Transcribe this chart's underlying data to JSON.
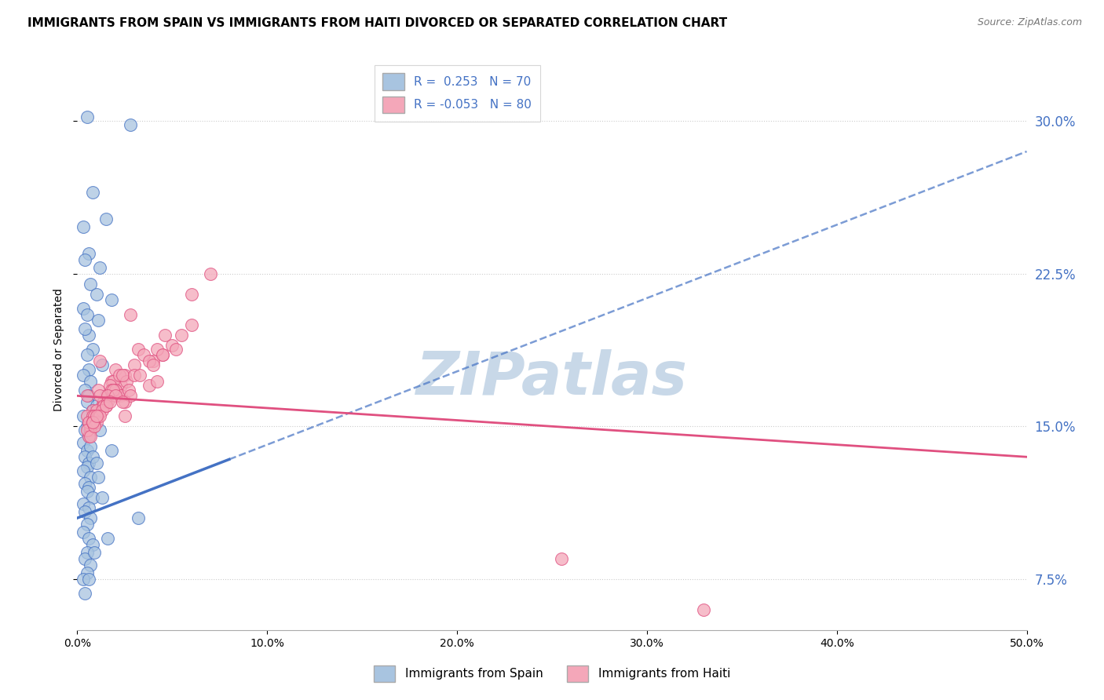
{
  "title": "IMMIGRANTS FROM SPAIN VS IMMIGRANTS FROM HAITI DIVORCED OR SEPARATED CORRELATION CHART",
  "source": "Source: ZipAtlas.com",
  "ylabel": "Divorced or Separated",
  "xlim": [
    0.0,
    50.0
  ],
  "ylim": [
    5.0,
    32.5
  ],
  "y_ticks": [
    7.5,
    15.0,
    22.5,
    30.0
  ],
  "y_tick_labels": [
    "7.5%",
    "15.0%",
    "22.5%",
    "30.0%"
  ],
  "x_ticks": [
    0,
    10,
    20,
    30,
    40,
    50
  ],
  "x_tick_labels": [
    "0.0%",
    "10.0%",
    "20.0%",
    "30.0%",
    "40.0%",
    "50.0%"
  ],
  "legend1_label": "R =  0.253   N = 70",
  "legend2_label": "R = -0.053   N = 80",
  "spain_color": "#a8c4e0",
  "haiti_color": "#f4a7b9",
  "spain_line_color": "#4472c4",
  "haiti_line_color": "#e05080",
  "watermark": "ZIPatlas",
  "watermark_color": "#c8d8e8",
  "title_fontsize": 11,
  "axis_label_fontsize": 10,
  "tick_fontsize": 10,
  "legend_fontsize": 11,
  "spain_R": 0.253,
  "haiti_R": -0.053,
  "spain_scatter_x": [
    0.5,
    2.8,
    0.8,
    1.5,
    0.3,
    0.6,
    1.2,
    0.4,
    0.7,
    1.0,
    0.3,
    0.5,
    1.8,
    0.6,
    0.4,
    1.1,
    0.8,
    0.5,
    0.6,
    0.3,
    0.7,
    1.3,
    0.4,
    0.6,
    0.5,
    0.8,
    1.0,
    0.3,
    0.7,
    0.5,
    1.5,
    0.4,
    0.6,
    0.9,
    0.3,
    0.5,
    0.7,
    0.4,
    1.2,
    0.6,
    0.8,
    0.5,
    0.3,
    0.7,
    1.0,
    0.4,
    0.6,
    1.8,
    0.5,
    0.8,
    0.3,
    1.1,
    0.6,
    0.4,
    0.7,
    0.5,
    1.3,
    0.3,
    0.6,
    0.8,
    0.5,
    3.2,
    0.4,
    1.6,
    0.7,
    0.5,
    0.3,
    0.9,
    0.6,
    0.4
  ],
  "spain_scatter_y": [
    30.2,
    29.8,
    26.5,
    25.2,
    24.8,
    23.5,
    22.8,
    23.2,
    22.0,
    21.5,
    20.8,
    20.5,
    21.2,
    19.5,
    19.8,
    20.2,
    18.8,
    18.5,
    17.8,
    17.5,
    17.2,
    18.0,
    16.8,
    16.5,
    16.2,
    15.8,
    16.0,
    15.5,
    15.2,
    15.0,
    16.5,
    14.8,
    14.5,
    15.2,
    14.2,
    13.8,
    14.0,
    13.5,
    14.8,
    13.2,
    13.5,
    13.0,
    12.8,
    12.5,
    13.2,
    12.2,
    12.0,
    13.8,
    11.8,
    11.5,
    11.2,
    12.5,
    11.0,
    10.8,
    10.5,
    10.2,
    11.5,
    9.8,
    9.5,
    9.2,
    8.8,
    10.5,
    8.5,
    9.5,
    8.2,
    7.8,
    7.5,
    8.8,
    7.5,
    6.8
  ],
  "haiti_scatter_x": [
    0.5,
    1.2,
    0.8,
    2.5,
    1.5,
    3.8,
    0.6,
    2.0,
    1.0,
    4.5,
    0.7,
    1.8,
    3.2,
    2.8,
    1.3,
    0.5,
    4.0,
    1.6,
    2.3,
    0.9,
    1.1,
    5.5,
    2.5,
    1.0,
    0.6,
    1.9,
    3.5,
    1.4,
    2.2,
    0.8,
    1.7,
    6.0,
    2.1,
    1.5,
    0.7,
    3.0,
    2.0,
    5.0,
    0.6,
    1.2,
    4.2,
    2.6,
    1.8,
    0.9,
    2.4,
    7.0,
    1.4,
    0.5,
    2.0,
    3.8,
    0.8,
    3.0,
    1.6,
    4.6,
    1.1,
    2.3,
    1.0,
    6.0,
    1.9,
    3.3,
    0.7,
    2.7,
    1.3,
    5.2,
    1.6,
    0.9,
    2.5,
    4.0,
    1.2,
    25.5,
    2.8,
    2.0,
    4.5,
    0.8,
    1.5,
    33.0,
    1.0,
    2.4,
    4.2,
    1.7
  ],
  "haiti_scatter_y": [
    16.5,
    18.2,
    15.8,
    17.5,
    16.2,
    17.0,
    15.2,
    17.8,
    15.5,
    18.5,
    14.8,
    17.2,
    18.8,
    20.5,
    16.0,
    15.5,
    18.2,
    16.5,
    17.0,
    15.2,
    16.8,
    19.5,
    15.5,
    15.8,
    14.5,
    17.2,
    18.5,
    16.2,
    17.5,
    15.5,
    17.0,
    21.5,
    16.5,
    16.0,
    15.0,
    18.0,
    16.8,
    19.0,
    15.2,
    16.5,
    18.8,
    17.2,
    16.8,
    15.5,
    17.5,
    22.5,
    16.0,
    14.8,
    16.8,
    18.2,
    15.2,
    17.5,
    16.2,
    19.5,
    15.5,
    16.5,
    15.2,
    20.0,
    16.8,
    17.5,
    14.5,
    16.8,
    15.8,
    18.8,
    16.5,
    15.0,
    16.2,
    18.0,
    15.5,
    8.5,
    16.5,
    16.5,
    18.5,
    15.2,
    16.0,
    6.0,
    15.5,
    16.2,
    17.2,
    16.2
  ],
  "spain_trendline_x": [
    0.0,
    50.0
  ],
  "spain_trendline_y": [
    10.5,
    28.5
  ],
  "haiti_trendline_x": [
    0.0,
    50.0
  ],
  "haiti_trendline_y": [
    16.5,
    13.5
  ]
}
